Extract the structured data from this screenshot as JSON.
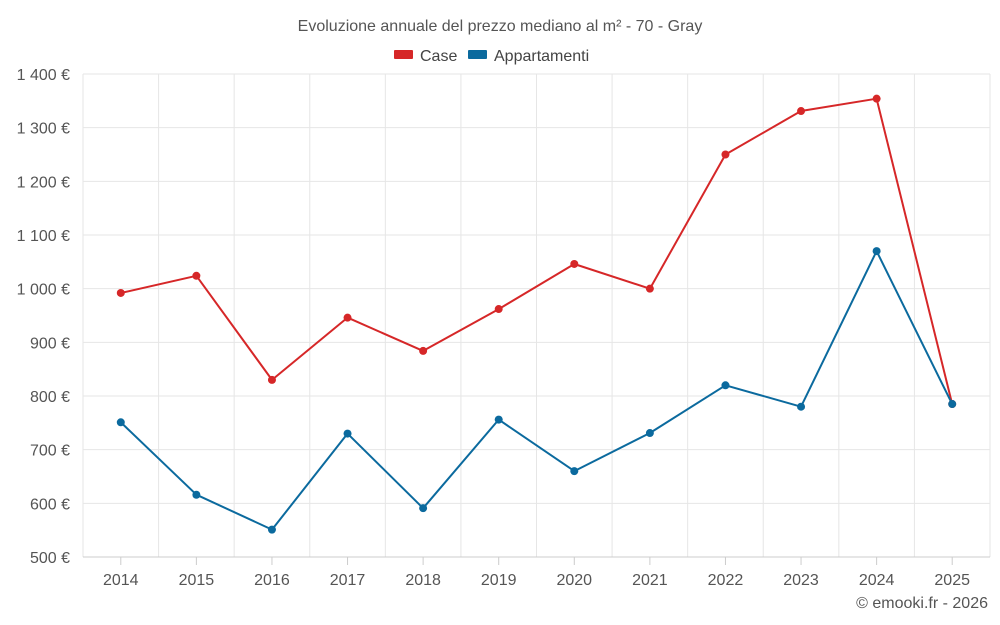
{
  "chart_data": {
    "type": "line",
    "title": "Evoluzione annuale del prezzo mediano al m² - 70 - Gray",
    "categories": [
      "2014",
      "2015",
      "2016",
      "2017",
      "2018",
      "2019",
      "2020",
      "2021",
      "2022",
      "2023",
      "2024",
      "2025"
    ],
    "series": [
      {
        "name": "Case",
        "color": "#d62728",
        "values": [
          992,
          1024,
          830,
          946,
          884,
          962,
          1046,
          1000,
          1250,
          1331,
          1354,
          785
        ]
      },
      {
        "name": "Appartamenti",
        "color": "#0b6a9e",
        "values": [
          751,
          616,
          551,
          730,
          591,
          756,
          660,
          731,
          820,
          780,
          1070,
          785
        ]
      }
    ],
    "ylim": [
      500,
      1400
    ],
    "yticks": [
      500,
      600,
      700,
      800,
      900,
      1000,
      1100,
      1200,
      1300,
      1400
    ],
    "ytick_labels": [
      "500 €",
      "600 €",
      "700 €",
      "800 €",
      "900 €",
      "1 000 €",
      "1 100 €",
      "1 200 €",
      "1 300 €",
      "1 400 €"
    ],
    "grid": true,
    "legend_position": "top-center"
  },
  "credit": "© emooki.fr - 2026"
}
